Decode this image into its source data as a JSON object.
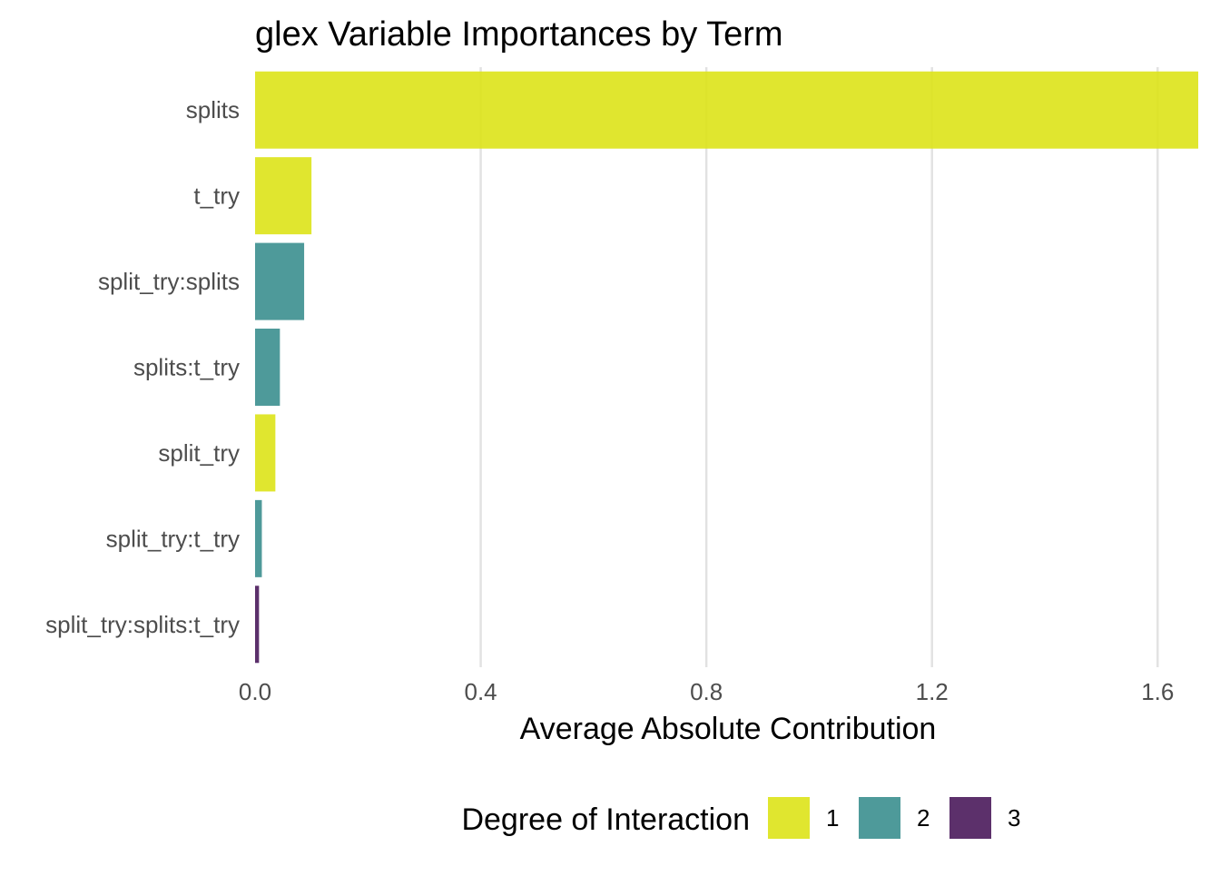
{
  "chart_data": {
    "type": "bar",
    "orientation": "horizontal",
    "title": "glex Variable Importances by Term",
    "xlabel": "Average Absolute Contribution",
    "ylabel": "",
    "xlim": [
      0,
      1.68
    ],
    "xticks": [
      0.0,
      0.4,
      0.8,
      1.2,
      1.6
    ],
    "xtick_labels": [
      "0.0",
      "0.4",
      "0.8",
      "1.2",
      "1.6"
    ],
    "grid": true,
    "categories": [
      "splits",
      "t_try",
      "split_try:splits",
      "splits:t_try",
      "split_try",
      "split_try:t_try",
      "split_try:splits:t_try"
    ],
    "values": [
      1.672,
      0.1,
      0.087,
      0.044,
      0.036,
      0.012,
      0.007
    ],
    "degree": [
      1,
      1,
      2,
      2,
      1,
      2,
      3
    ],
    "legend": {
      "title": "Degree of Interaction",
      "placement": "bottom",
      "entries": [
        {
          "label": "1",
          "color": "#dde318"
        },
        {
          "label": "2",
          "color": "#3b8f8f"
        },
        {
          "label": "3",
          "color": "#4a1a5b"
        }
      ]
    }
  }
}
